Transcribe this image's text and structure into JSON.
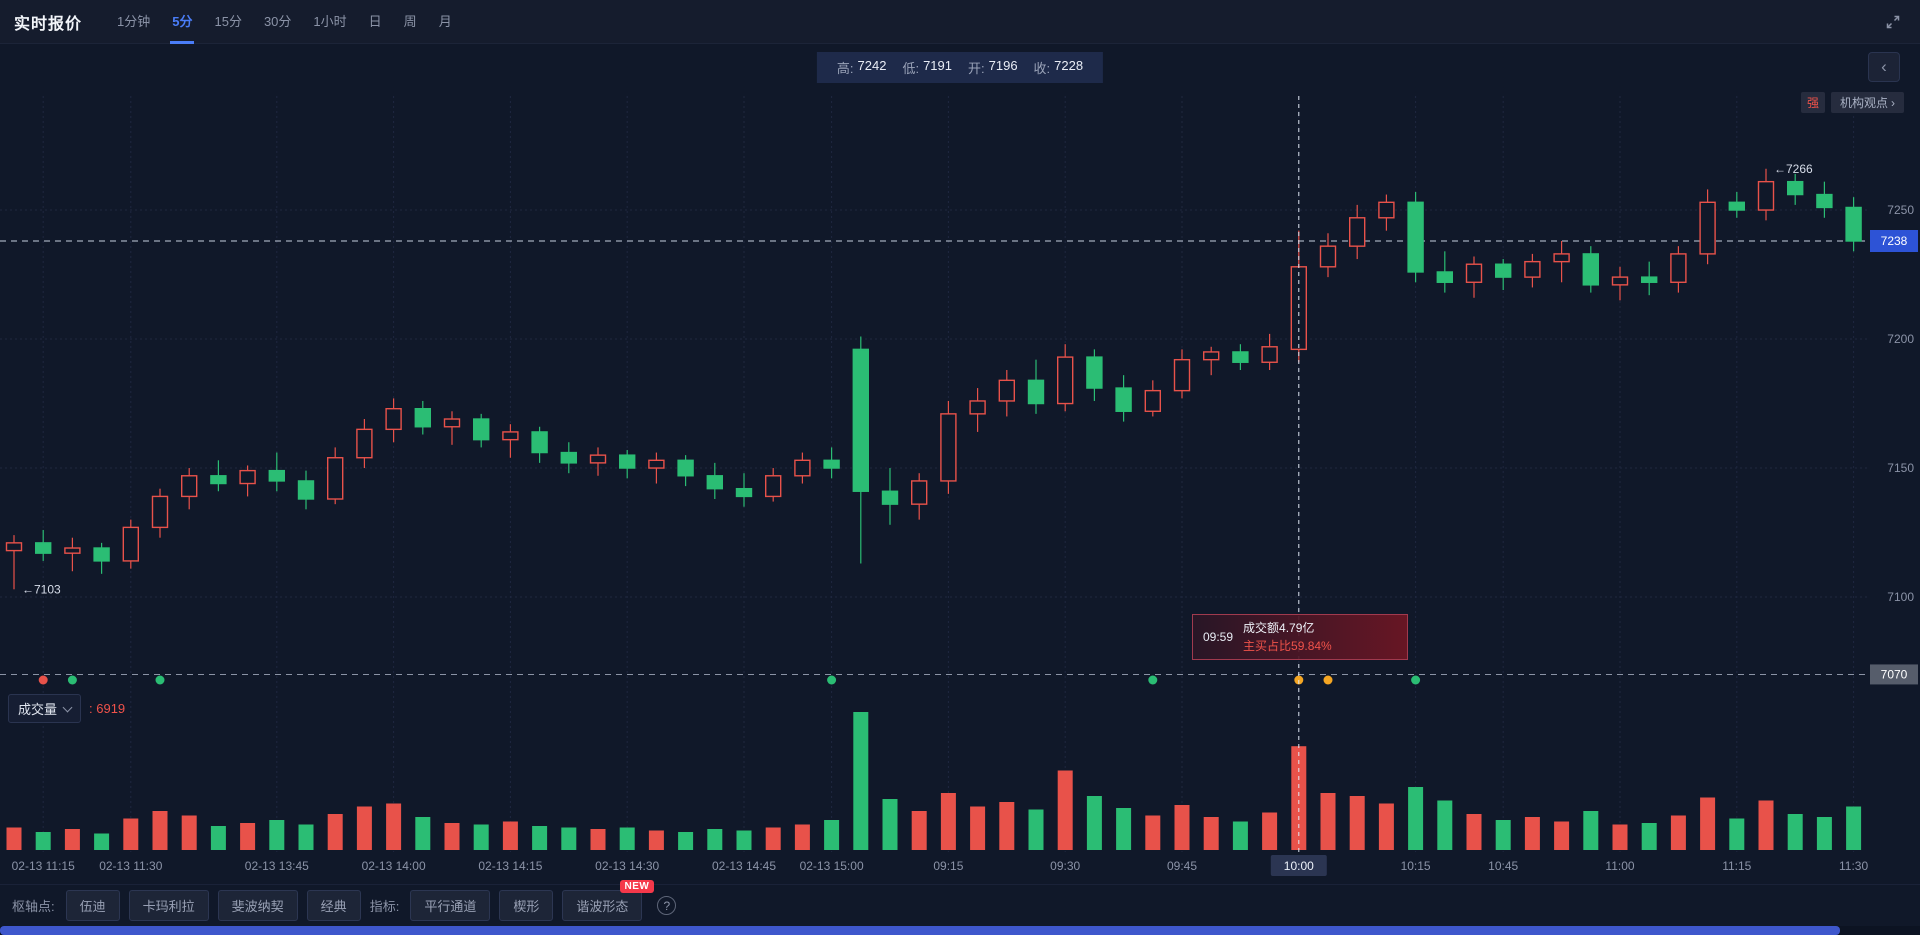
{
  "header": {
    "title": "实时报价",
    "tabs": [
      {
        "label": "1分钟"
      },
      {
        "label": "5分",
        "active": true
      },
      {
        "label": "15分"
      },
      {
        "label": "30分"
      },
      {
        "label": "1小时"
      },
      {
        "label": "日"
      },
      {
        "label": "周"
      },
      {
        "label": "月"
      }
    ]
  },
  "ohlc_bar": {
    "items": [
      {
        "label": "高:",
        "value": "7242"
      },
      {
        "label": "低:",
        "value": "7191"
      },
      {
        "label": "开:",
        "value": "7196"
      },
      {
        "label": "收:",
        "value": "7228"
      }
    ]
  },
  "side_panel": {
    "collapse_chevron": "‹",
    "strength_badge": "强",
    "institution_link": "机构观点",
    "link_chevron": "›"
  },
  "volume_header": {
    "label": "成交量",
    "value_text": ": 6919"
  },
  "tooltip": {
    "time": "09:59",
    "line1": "成交额4.79亿",
    "line2": "主买占比59.84%"
  },
  "toolbar": {
    "pivot_label": "枢轴点:",
    "pivot_buttons": [
      "伍迪",
      "卡玛利拉",
      "斐波纳契",
      "经典"
    ],
    "indicator_label": "指标:",
    "indicator_buttons": [
      "平行通道",
      "楔形",
      "谐波形态"
    ],
    "new_badge": "NEW",
    "help_icon": "?"
  },
  "chart_data": {
    "type": "candlestick",
    "interval": "5分",
    "price_axis_ticks": [
      7250,
      7200,
      7150,
      7100
    ],
    "current_price": 7238,
    "reference_price": 7070,
    "crosshair_index": 44,
    "colors": {
      "up": "#e8524a",
      "down": "#2bbd74",
      "accent": "#4a7df8",
      "current_tag": "#2d53d6",
      "reference_tag": "#565d6b"
    },
    "annotations": [
      {
        "index": 0,
        "price": 7103,
        "text": "←7103"
      },
      {
        "index": 60,
        "price": 7266,
        "text": "←7266"
      }
    ],
    "x_labels": [
      [
        1,
        "02-13 11:15"
      ],
      [
        4,
        "02-13 11:30"
      ],
      [
        9,
        "02-13 13:45"
      ],
      [
        13,
        "02-13 14:00"
      ],
      [
        17,
        "02-13 14:15"
      ],
      [
        21,
        "02-13 14:30"
      ],
      [
        25,
        "02-13 14:45"
      ],
      [
        28,
        "02-13 15:00"
      ],
      [
        32,
        "09:15"
      ],
      [
        36,
        "09:30"
      ],
      [
        40,
        "09:45"
      ],
      [
        44,
        "10:00"
      ],
      [
        48,
        "10:15"
      ],
      [
        51,
        "10:45"
      ],
      [
        55,
        "11:00"
      ],
      [
        59,
        "11:15"
      ],
      [
        63,
        "11:30"
      ]
    ],
    "markers": [
      {
        "index": 1,
        "color": "#e8524a"
      },
      {
        "index": 2,
        "color": "#2bbd74"
      },
      {
        "index": 5,
        "color": "#2bbd74"
      },
      {
        "index": 28,
        "color": "#2bbd74"
      },
      {
        "index": 39,
        "color": "#2bbd74"
      },
      {
        "index": 44,
        "color": "#f5a623"
      },
      {
        "index": 45,
        "color": "#f5a623"
      },
      {
        "index": 48,
        "color": "#2bbd74"
      }
    ],
    "candles": [
      [
        7118,
        7124,
        7103,
        7121,
        1500
      ],
      [
        7121,
        7126,
        7114,
        7117,
        1200
      ],
      [
        7117,
        7123,
        7110,
        7119,
        1400
      ],
      [
        7119,
        7121,
        7109,
        7114,
        1100
      ],
      [
        7114,
        7130,
        7111,
        7127,
        2100
      ],
      [
        7127,
        7142,
        7123,
        7139,
        2600
      ],
      [
        7139,
        7150,
        7134,
        7147,
        2300
      ],
      [
        7147,
        7153,
        7141,
        7144,
        1600
      ],
      [
        7144,
        7151,
        7139,
        7149,
        1800
      ],
      [
        7149,
        7156,
        7141,
        7145,
        2000
      ],
      [
        7145,
        7149,
        7134,
        7138,
        1700
      ],
      [
        7138,
        7158,
        7136,
        7154,
        2400
      ],
      [
        7154,
        7169,
        7150,
        7165,
        2900
      ],
      [
        7165,
        7177,
        7160,
        7173,
        3100
      ],
      [
        7173,
        7176,
        7163,
        7166,
        2200
      ],
      [
        7166,
        7172,
        7159,
        7169,
        1800
      ],
      [
        7169,
        7171,
        7158,
        7161,
        1700
      ],
      [
        7161,
        7167,
        7154,
        7164,
        1900
      ],
      [
        7164,
        7166,
        7152,
        7156,
        1600
      ],
      [
        7156,
        7160,
        7148,
        7152,
        1500
      ],
      [
        7152,
        7158,
        7147,
        7155,
        1400
      ],
      [
        7155,
        7157,
        7146,
        7150,
        1500
      ],
      [
        7150,
        7156,
        7144,
        7153,
        1300
      ],
      [
        7153,
        7155,
        7143,
        7147,
        1200
      ],
      [
        7147,
        7152,
        7138,
        7142,
        1400
      ],
      [
        7142,
        7148,
        7135,
        7139,
        1300
      ],
      [
        7139,
        7150,
        7137,
        7147,
        1500
      ],
      [
        7147,
        7156,
        7144,
        7153,
        1700
      ],
      [
        7153,
        7158,
        7146,
        7150,
        2000
      ],
      [
        7196,
        7201,
        7113,
        7141,
        9200
      ],
      [
        7141,
        7150,
        7128,
        7136,
        3400
      ],
      [
        7136,
        7148,
        7130,
        7145,
        2600
      ],
      [
        7145,
        7176,
        7140,
        7171,
        3800
      ],
      [
        7171,
        7181,
        7164,
        7176,
        2900
      ],
      [
        7176,
        7188,
        7170,
        7184,
        3200
      ],
      [
        7184,
        7192,
        7171,
        7175,
        2700
      ],
      [
        7175,
        7198,
        7172,
        7193,
        5300
      ],
      [
        7193,
        7196,
        7176,
        7181,
        3600
      ],
      [
        7181,
        7186,
        7168,
        7172,
        2800
      ],
      [
        7172,
        7184,
        7170,
        7180,
        2300
      ],
      [
        7180,
        7196,
        7177,
        7192,
        3000
      ],
      [
        7192,
        7197,
        7186,
        7195,
        2200
      ],
      [
        7195,
        7198,
        7188,
        7191,
        1900
      ],
      [
        7191,
        7202,
        7188,
        7197,
        2500
      ],
      [
        7196,
        7242,
        7191,
        7228,
        6919
      ],
      [
        7228,
        7241,
        7224,
        7236,
        3800
      ],
      [
        7236,
        7252,
        7231,
        7247,
        3600
      ],
      [
        7247,
        7256,
        7242,
        7253,
        3100
      ],
      [
        7253,
        7257,
        7222,
        7226,
        4200
      ],
      [
        7226,
        7234,
        7218,
        7222,
        3300
      ],
      [
        7222,
        7232,
        7216,
        7229,
        2400
      ],
      [
        7229,
        7231,
        7219,
        7224,
        2000
      ],
      [
        7224,
        7233,
        7220,
        7230,
        2200
      ],
      [
        7230,
        7238,
        7222,
        7233,
        1900
      ],
      [
        7233,
        7236,
        7218,
        7221,
        2600
      ],
      [
        7221,
        7228,
        7215,
        7224,
        1700
      ],
      [
        7224,
        7230,
        7217,
        7222,
        1800
      ],
      [
        7222,
        7236,
        7218,
        7233,
        2300
      ],
      [
        7233,
        7258,
        7229,
        7253,
        3500
      ],
      [
        7253,
        7257,
        7247,
        7250,
        2100
      ],
      [
        7250,
        7266,
        7246,
        7261,
        3300
      ],
      [
        7261,
        7264,
        7252,
        7256,
        2400
      ],
      [
        7256,
        7261,
        7247,
        7251,
        2200
      ],
      [
        7251,
        7255,
        7234,
        7238,
        2900
      ]
    ]
  }
}
